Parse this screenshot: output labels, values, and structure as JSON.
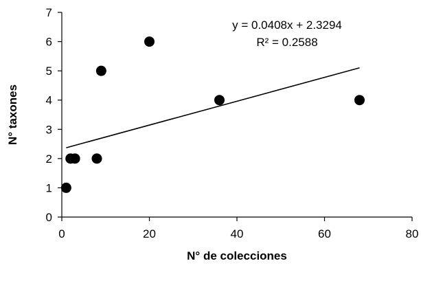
{
  "chart_data": {
    "type": "scatter",
    "title": "",
    "xlabel": "N° de colecciones",
    "ylabel": "N° taxones",
    "xlim": [
      0,
      80
    ],
    "ylim": [
      0,
      7
    ],
    "xticks": [
      "0",
      "20",
      "40",
      "60",
      "80"
    ],
    "yticks": [
      "0",
      "1",
      "2",
      "3",
      "4",
      "5",
      "6",
      "7"
    ],
    "grid": false,
    "legend": "none",
    "points": [
      {
        "x": 1,
        "y": 1
      },
      {
        "x": 2,
        "y": 2
      },
      {
        "x": 3,
        "y": 2
      },
      {
        "x": 8,
        "y": 2
      },
      {
        "x": 9,
        "y": 5
      },
      {
        "x": 20,
        "y": 6
      },
      {
        "x": 36,
        "y": 4
      },
      {
        "x": 68,
        "y": 4
      }
    ],
    "trendline": {
      "type": "linear",
      "slope": 0.0408,
      "intercept": 2.3294,
      "x_range": [
        1,
        68
      ],
      "equation_label": "y = 0.0408x + 2.3294",
      "r2_label": "R² = 0.2588"
    },
    "colors": {
      "marker": "#000000",
      "line": "#000000",
      "axis": "#000000"
    }
  }
}
